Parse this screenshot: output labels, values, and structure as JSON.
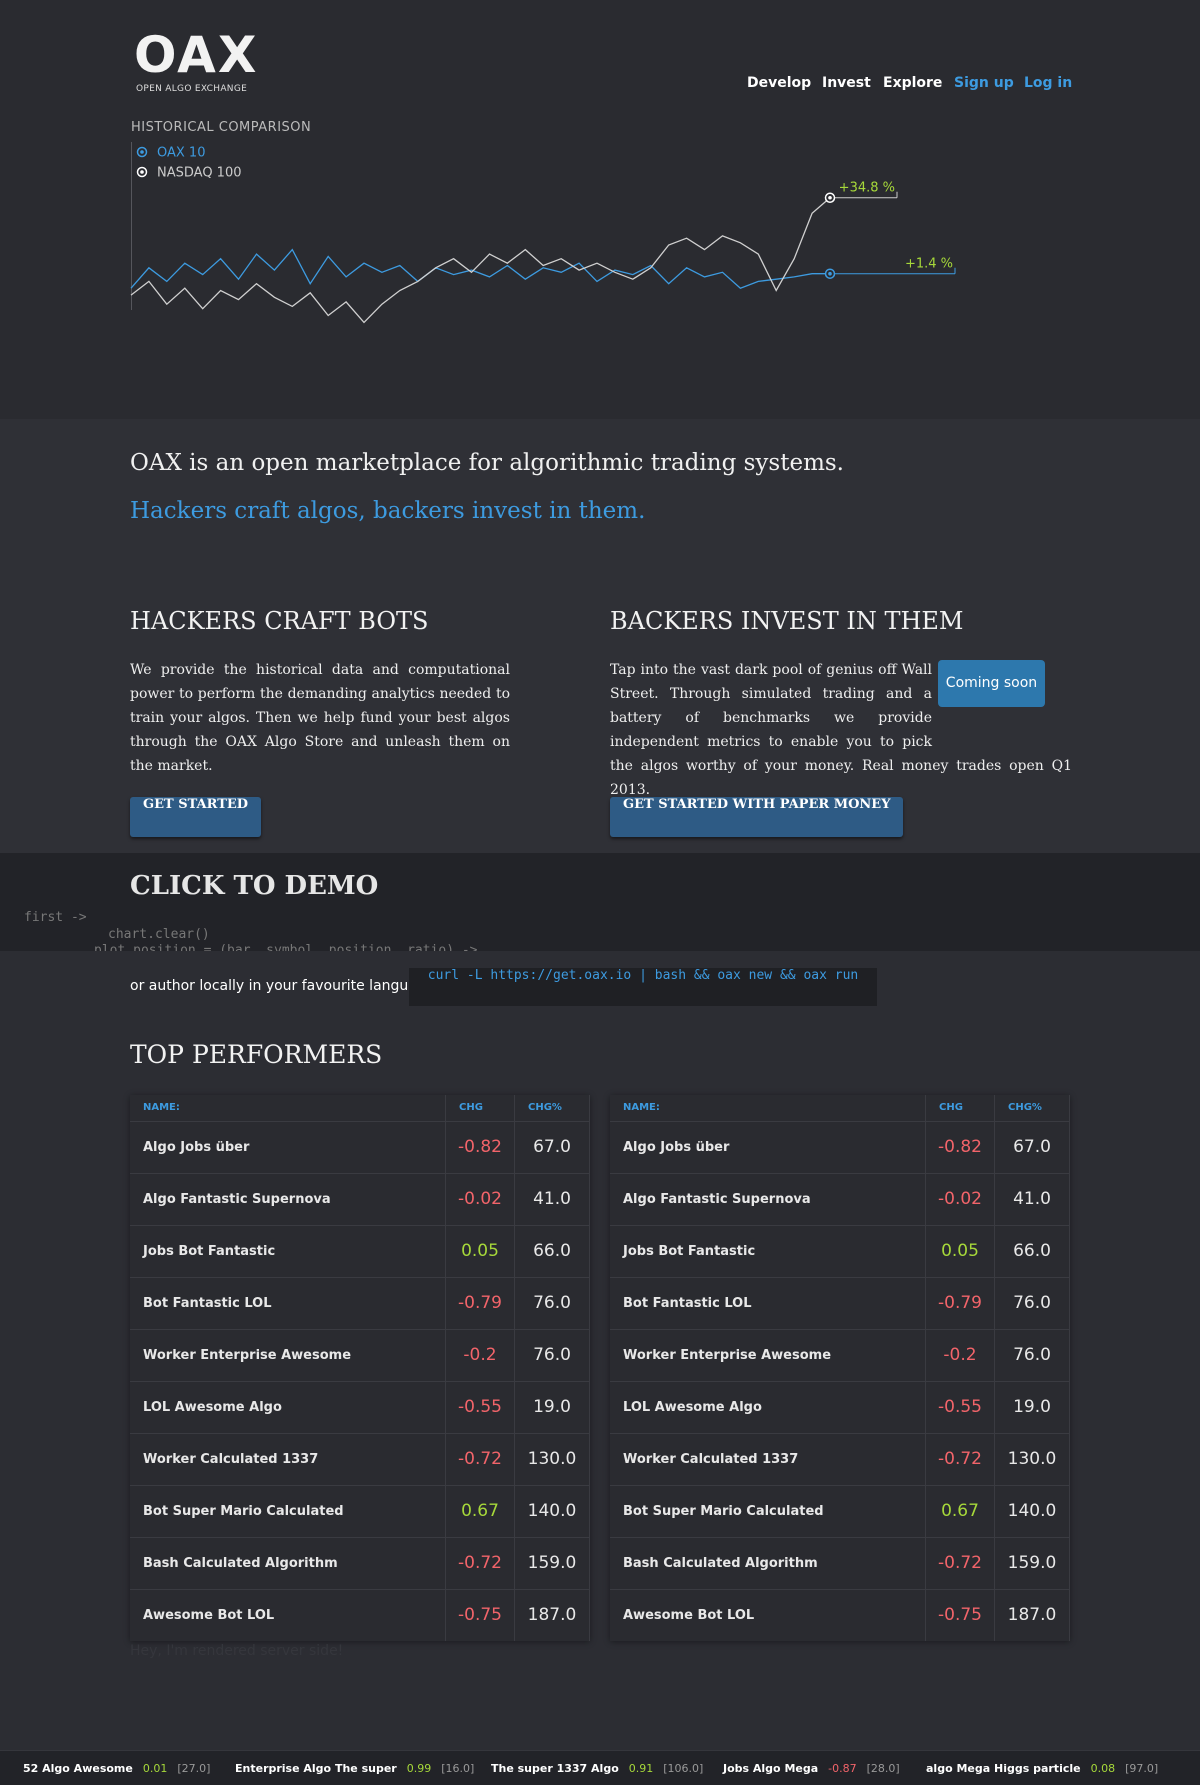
{
  "header": {
    "logo": "OAX",
    "logo_sub": "OPEN ALGO EXCHANGE",
    "nav": [
      {
        "label": "Develop",
        "accent": false
      },
      {
        "label": "Invest",
        "accent": false
      },
      {
        "label": "Explore",
        "accent": false
      },
      {
        "label": "Sign up",
        "accent": true
      },
      {
        "label": "Log in",
        "accent": true
      }
    ]
  },
  "chart": {
    "title": "HISTORICAL COMPARISON",
    "ylim": [
      -26,
      47
    ],
    "series": [
      {
        "name": "OAX 10",
        "color": "#3d9be0",
        "end_label": "+1.4 %",
        "values": [
          -5,
          4,
          -2,
          6,
          1,
          8,
          -1,
          10,
          3,
          12,
          -3,
          9,
          0,
          6,
          2,
          5,
          -2,
          4,
          1,
          3,
          0,
          5,
          -1,
          4,
          2,
          6,
          -2,
          3,
          1,
          5,
          -3,
          4,
          0,
          2,
          -5,
          -2,
          -1,
          0,
          1.4,
          1.4
        ]
      },
      {
        "name": "NASDAQ 100",
        "color": "#d0d0d0",
        "end_label": "+34.8 %",
        "values": [
          -8,
          -2,
          -12,
          -5,
          -14,
          -6,
          -10,
          -3,
          -9,
          -13,
          -7,
          -17,
          -11,
          -20,
          -12,
          -6,
          -2,
          4,
          8,
          2,
          10,
          6,
          12,
          5,
          8,
          3,
          6,
          2,
          -1,
          4,
          14,
          17,
          12,
          18,
          15,
          10,
          -6,
          8,
          28,
          34.8
        ]
      }
    ]
  },
  "intro": {
    "lead": "OAX is an open marketplace for algorithmic trading systems.",
    "tagline": "Hackers craft algos, backers invest in them."
  },
  "columns": [
    {
      "heading": "HACKERS CRAFT BOTS",
      "text": "We provide the historical data and computational power to perform the demanding analytics needed to train your algos. Then we help fund your best algos through the OAX Algo Store and unleash them on the market.",
      "button": "GET STARTED"
    },
    {
      "heading": "BACKERS INVEST IN THEM",
      "text": "Tap into the vast dark pool of genius off Wall Street. Through simulated trading and a battery of benchmarks we provide independent metrics to enable you to pick the algos worthy of your money. Real money trades open Q1 2013.",
      "button": "GET STARTED WITH PAPER MONEY",
      "badge": "Coming soon"
    }
  ],
  "demo": {
    "title": "CLICK TO DEMO",
    "code": [
      "first ->",
      "chart.clear()",
      "plot_position = (bar, symbol, position, ratio) ->"
    ]
  },
  "local": {
    "text": "or author locally in your favourite language:",
    "command": "curl -L https://get.oax.io | bash && oax new && oax run"
  },
  "performers": {
    "title": "TOP PERFORMERS",
    "tables": [
      {
        "headers": [
          "NAME:",
          "CHG",
          "CHG%"
        ],
        "rows": [
          [
            "Algo Jobs über",
            "-0.82",
            "67.0"
          ],
          [
            "Algo Fantastic Supernova",
            "-0.02",
            "41.0"
          ],
          [
            "Jobs Bot Fantastic",
            "0.05",
            "66.0"
          ],
          [
            "Bot Fantastic LOL",
            "-0.79",
            "76.0"
          ],
          [
            "Worker Enterprise Awesome",
            "-0.2",
            "76.0"
          ],
          [
            "LOL Awesome Algo",
            "-0.55",
            "19.0"
          ],
          [
            "Worker Calculated 1337",
            "-0.72",
            "130.0"
          ],
          [
            "Bot Super Mario Calculated",
            "0.67",
            "140.0"
          ],
          [
            "Bash Calculated Algorithm",
            "-0.72",
            "159.0"
          ],
          [
            "Awesome Bot LOL",
            "-0.75",
            "187.0"
          ]
        ]
      },
      {
        "headers": [
          "NAME:",
          "CHG",
          "CHG%"
        ],
        "rows": [
          [
            "Algo Jobs über",
            "-0.82",
            "67.0"
          ],
          [
            "Algo Fantastic Supernova",
            "-0.02",
            "41.0"
          ],
          [
            "Jobs Bot Fantastic",
            "0.05",
            "66.0"
          ],
          [
            "Bot Fantastic LOL",
            "-0.79",
            "76.0"
          ],
          [
            "Worker Enterprise Awesome",
            "-0.2",
            "76.0"
          ],
          [
            "LOL Awesome Algo",
            "-0.55",
            "19.0"
          ],
          [
            "Worker Calculated 1337",
            "-0.72",
            "130.0"
          ],
          [
            "Bot Super Mario Calculated",
            "0.67",
            "140.0"
          ],
          [
            "Bash Calculated Algorithm",
            "-0.72",
            "159.0"
          ],
          [
            "Awesome Bot LOL",
            "-0.75",
            "187.0"
          ]
        ]
      }
    ],
    "note": "Hey, I'm rendered server side!"
  },
  "ticker": [
    {
      "name": "52 Algo Awesome",
      "chg": "0.01",
      "price": "[27.0]"
    },
    {
      "name": "Enterprise Algo The super",
      "chg": "0.99",
      "price": "[16.0]"
    },
    {
      "name": "The super 1337 Algo",
      "chg": "0.91",
      "price": "[106.0]"
    },
    {
      "name": "Jobs Algo Mega",
      "chg": "-0.87",
      "price": "[28.0]"
    },
    {
      "name": "algo Mega Higgs particle",
      "chg": "0.08",
      "price": "[97.0]"
    }
  ]
}
